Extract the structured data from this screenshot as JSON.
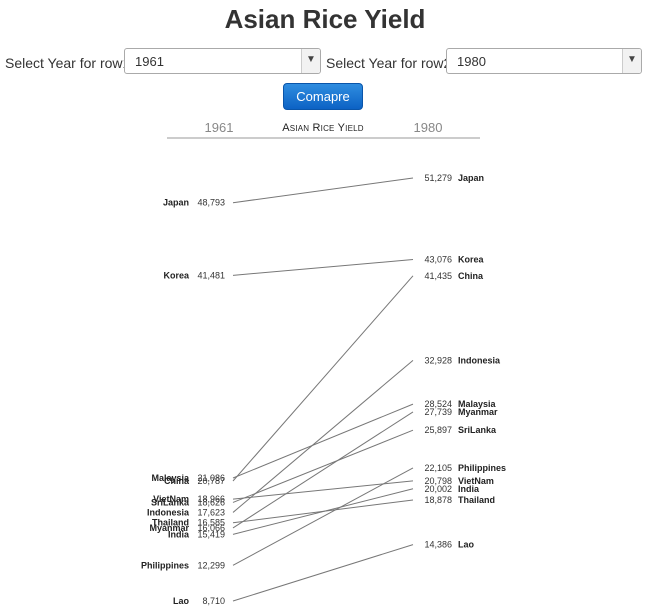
{
  "page": {
    "title": "Asian Rice Yield",
    "row1_label": "Select Year for row1",
    "row1_value": "1961",
    "row2_label": "Select Year for row2",
    "row2_value": "1980",
    "compare_label": "Comapre"
  },
  "chart_data": {
    "type": "slope",
    "title": "Asian Rice Yield",
    "left_label": "1961",
    "right_label": "1980",
    "left_display_values": [
      "48,793",
      "41,481",
      "21,086",
      "20,787",
      "18,966",
      "18,626",
      "17,623",
      "16,585",
      "16,066",
      "15,419",
      "12,299",
      "8,710"
    ],
    "right_display_values": [
      "51,279",
      "43,076",
      "41,435",
      "32,928",
      "28,524",
      "27,739",
      "25,897",
      "22,105",
      "20,798",
      "20,002",
      "18,878",
      "14,386"
    ],
    "series": [
      {
        "name": "Japan",
        "v1": 48793,
        "v2": 51279
      },
      {
        "name": "Korea",
        "v1": 41481,
        "v2": 43076
      },
      {
        "name": "China",
        "v1": 20787,
        "v2": 41435
      },
      {
        "name": "Indonesia",
        "v1": 17623,
        "v2": 32928
      },
      {
        "name": "Malaysia",
        "v1": 21086,
        "v2": 28524
      },
      {
        "name": "Myanmar",
        "v1": 16066,
        "v2": 27739
      },
      {
        "name": "SriLanka",
        "v1": 18626,
        "v2": 25897
      },
      {
        "name": "Philippines",
        "v1": 12299,
        "v2": 22105
      },
      {
        "name": "VietNam",
        "v1": 18966,
        "v2": 20798
      },
      {
        "name": "India",
        "v1": 15419,
        "v2": 20002
      },
      {
        "name": "Thailand",
        "v1": 16585,
        "v2": 18878
      },
      {
        "name": "Lao",
        "v1": 8710,
        "v2": 14386
      }
    ],
    "left_order": [
      "Japan",
      "Korea",
      "Malaysia",
      "China",
      "VietNam",
      "SriLanka",
      "Indonesia",
      "Thailand",
      "Myanmar",
      "India",
      "Philippines",
      "Lao"
    ],
    "right_order": [
      "Japan",
      "Korea",
      "China",
      "Indonesia",
      "Malaysia",
      "Myanmar",
      "SriLanka",
      "Philippines",
      "VietNam",
      "India",
      "Thailand",
      "Lao"
    ]
  }
}
